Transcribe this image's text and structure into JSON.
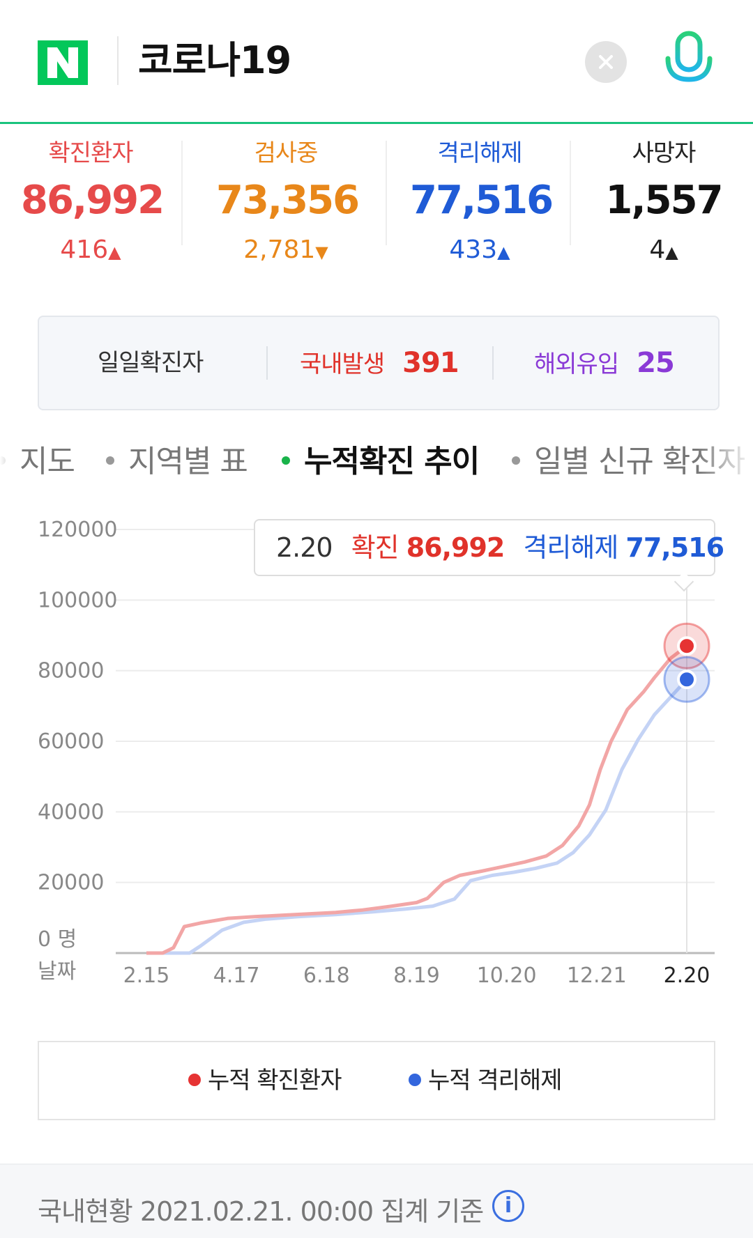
{
  "header": {
    "logo_text": "N",
    "query": "코로나19",
    "brand_color": "#03c75a",
    "clear_icon": "close-icon",
    "mic_icon": "microphone-icon"
  },
  "stats": [
    {
      "label": "확진환자",
      "value": "86,992",
      "change": "416",
      "direction": "up",
      "color": "#e64a4a"
    },
    {
      "label": "검사중",
      "value": "73,356",
      "change": "2,781",
      "direction": "down",
      "color": "#e8871a"
    },
    {
      "label": "격리해제",
      "value": "77,516",
      "change": "433",
      "direction": "up",
      "color": "#1f5bd6"
    },
    {
      "label": "사망자",
      "value": "1,557",
      "change": "4",
      "direction": "up",
      "color": "#111111"
    }
  ],
  "daily": {
    "title": "일일확진자",
    "domestic_label": "국내발생",
    "domestic_value": "391",
    "overseas_label": "해외유입",
    "overseas_value": "25"
  },
  "tabs": [
    {
      "label": "지도",
      "active": false
    },
    {
      "label": "지역별 표",
      "active": false
    },
    {
      "label": "누적확진 추이",
      "active": true
    },
    {
      "label": "일별 신규 확진자",
      "active": false
    }
  ],
  "tooltip": {
    "date": "2.20",
    "confirmed_label": "확진",
    "confirmed_value": "86,992",
    "released_label": "격리해제",
    "released_value": "77,516"
  },
  "chart_data": {
    "type": "line",
    "ylim": [
      0,
      120000
    ],
    "yticks": [
      "120000",
      "100000",
      "80000",
      "60000",
      "40000",
      "20000",
      "0 명"
    ],
    "xlabel": "날짜",
    "xticks": [
      "2.15",
      "4.17",
      "6.18",
      "8.19",
      "10.20",
      "12.21",
      "2.20"
    ],
    "series": [
      {
        "name": "누적 확진환자",
        "color": "#f2a6a6",
        "points": [
          [
            0.0,
            0
          ],
          [
            0.03,
            0
          ],
          [
            0.05,
            1500
          ],
          [
            0.07,
            7500
          ],
          [
            0.1,
            8500
          ],
          [
            0.15,
            9800
          ],
          [
            0.2,
            10300
          ],
          [
            0.25,
            10700
          ],
          [
            0.3,
            11100
          ],
          [
            0.35,
            11500
          ],
          [
            0.4,
            12200
          ],
          [
            0.45,
            13200
          ],
          [
            0.5,
            14300
          ],
          [
            0.52,
            15500
          ],
          [
            0.55,
            20000
          ],
          [
            0.58,
            22000
          ],
          [
            0.62,
            23200
          ],
          [
            0.66,
            24500
          ],
          [
            0.7,
            25800
          ],
          [
            0.74,
            27500
          ],
          [
            0.77,
            30500
          ],
          [
            0.8,
            36000
          ],
          [
            0.82,
            42000
          ],
          [
            0.84,
            52000
          ],
          [
            0.86,
            60000
          ],
          [
            0.89,
            69000
          ],
          [
            0.92,
            74000
          ],
          [
            0.94,
            78000
          ],
          [
            0.97,
            83500
          ],
          [
            1.0,
            86992
          ]
        ]
      },
      {
        "name": "누적 격리해제",
        "color": "#c4d3f5",
        "points": [
          [
            0.0,
            0
          ],
          [
            0.08,
            0
          ],
          [
            0.1,
            2000
          ],
          [
            0.14,
            6500
          ],
          [
            0.18,
            8700
          ],
          [
            0.22,
            9600
          ],
          [
            0.28,
            10300
          ],
          [
            0.35,
            10900
          ],
          [
            0.42,
            11700
          ],
          [
            0.48,
            12500
          ],
          [
            0.53,
            13300
          ],
          [
            0.57,
            15300
          ],
          [
            0.6,
            20500
          ],
          [
            0.64,
            22000
          ],
          [
            0.68,
            22900
          ],
          [
            0.72,
            24000
          ],
          [
            0.76,
            25500
          ],
          [
            0.79,
            28500
          ],
          [
            0.82,
            33500
          ],
          [
            0.85,
            40500
          ],
          [
            0.88,
            52000
          ],
          [
            0.91,
            60500
          ],
          [
            0.94,
            67500
          ],
          [
            0.97,
            72500
          ],
          [
            1.0,
            77516
          ]
        ]
      }
    ]
  },
  "legend": [
    {
      "label": "누적 확진환자",
      "color": "#e63333"
    },
    {
      "label": "누적 격리해제",
      "color": "#3366dd"
    }
  ],
  "footer": {
    "text": "국내현황 2021.02.21. 00:00 집계 기준",
    "info_icon": "info-icon",
    "info_glyph": "i"
  }
}
